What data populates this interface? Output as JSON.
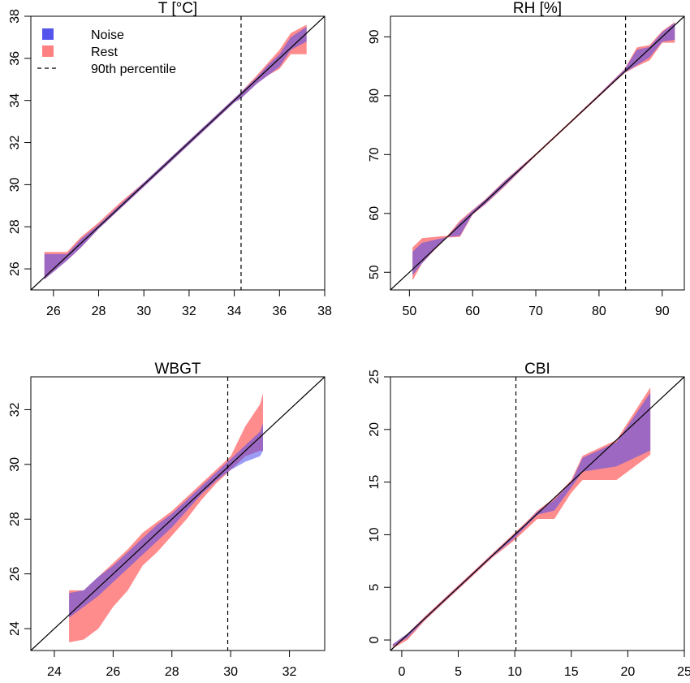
{
  "legend": {
    "items": [
      {
        "label": "Noise",
        "kind": "fill",
        "color": "#5555ee"
      },
      {
        "label": "Rest",
        "kind": "fill",
        "color": "#ff8080"
      },
      {
        "label": "90th percentile",
        "kind": "dash",
        "color": "#000000"
      }
    ],
    "position": "top-left of first panel"
  },
  "colors": {
    "noise": "#4b4bec",
    "rest": "#ff7f7f",
    "overlap": "#8a1e75",
    "identity_line": "#000000"
  },
  "chart_data": [
    {
      "type": "area",
      "title": "T [°C]",
      "xlim": [
        25,
        38
      ],
      "ylim": [
        25,
        38
      ],
      "xticks": [
        26,
        28,
        30,
        32,
        34,
        36,
        38
      ],
      "yticks": [
        26,
        28,
        30,
        32,
        34,
        36,
        38
      ],
      "percentile90": 34.3,
      "identity_line": true,
      "series": [
        {
          "name": "Rest",
          "x": [
            25.6,
            26.6,
            27.2,
            28.0,
            29.0,
            30.0,
            31.0,
            32.0,
            33.0,
            34.0,
            34.3,
            35.0,
            35.5,
            36.0,
            36.5,
            37.2
          ],
          "lower": [
            25.5,
            26.4,
            27.0,
            27.9,
            28.9,
            29.9,
            30.9,
            31.9,
            32.9,
            33.9,
            34.1,
            34.8,
            35.2,
            35.5,
            36.2,
            36.2
          ],
          "upper": [
            26.8,
            26.8,
            27.5,
            28.2,
            29.2,
            30.1,
            31.1,
            32.1,
            33.1,
            34.1,
            34.4,
            35.2,
            35.8,
            36.4,
            37.2,
            37.6
          ]
        },
        {
          "name": "Noise",
          "x": [
            25.6,
            26.6,
            27.2,
            28.0,
            29.0,
            30.0,
            31.0,
            32.0,
            33.0,
            34.0,
            34.3,
            35.0,
            35.5,
            36.0,
            36.5,
            37.2
          ],
          "lower": [
            25.5,
            26.4,
            27.0,
            27.9,
            28.9,
            29.9,
            30.9,
            31.9,
            32.9,
            33.9,
            34.1,
            34.8,
            35.2,
            35.6,
            36.4,
            36.8
          ],
          "upper": [
            26.7,
            26.7,
            27.4,
            28.1,
            29.1,
            30.1,
            31.1,
            32.1,
            33.1,
            34.1,
            34.4,
            35.1,
            35.7,
            36.2,
            37.0,
            37.5
          ]
        }
      ]
    },
    {
      "type": "area",
      "title": "RH [%]",
      "xlim": [
        47,
        93.5
      ],
      "ylim": [
        47,
        93.5
      ],
      "xticks": [
        50,
        60,
        70,
        80,
        90
      ],
      "yticks": [
        50,
        60,
        70,
        80,
        90
      ],
      "percentile90": 84.2,
      "identity_line": true,
      "series": [
        {
          "name": "Rest",
          "x": [
            50.5,
            52.0,
            54.0,
            56.0,
            58.0,
            60.0,
            62.0,
            65.0,
            70.0,
            75.0,
            80.0,
            84.0,
            86.0,
            88.0,
            90.0,
            92.0
          ],
          "lower": [
            48.6,
            51.5,
            53.8,
            55.9,
            56.0,
            59.8,
            61.5,
            64.5,
            69.8,
            74.8,
            79.8,
            83.8,
            85.0,
            86.0,
            89.0,
            89.0
          ],
          "upper": [
            54.2,
            55.8,
            56.0,
            56.2,
            58.8,
            60.6,
            62.4,
            65.5,
            70.2,
            75.2,
            80.3,
            84.5,
            88.2,
            88.6,
            91.0,
            92.5
          ]
        },
        {
          "name": "Noise",
          "x": [
            50.5,
            52.0,
            54.0,
            56.0,
            58.0,
            60.0,
            62.0,
            65.0,
            70.0,
            75.0,
            80.0,
            84.0,
            86.0,
            88.0,
            90.0,
            92.0
          ],
          "lower": [
            49.5,
            51.5,
            53.9,
            56.0,
            56.2,
            59.9,
            61.6,
            64.6,
            69.9,
            74.9,
            79.9,
            83.9,
            85.2,
            86.5,
            89.2,
            89.5
          ],
          "upper": [
            53.5,
            55.0,
            55.5,
            56.0,
            58.5,
            60.5,
            62.3,
            65.4,
            70.1,
            75.1,
            80.2,
            84.4,
            87.8,
            88.3,
            90.8,
            92.4
          ]
        }
      ]
    },
    {
      "type": "area",
      "title": "WBGT",
      "xlim": [
        23.2,
        33.2
      ],
      "ylim": [
        23.2,
        33.2
      ],
      "xticks": [
        24,
        26,
        28,
        30,
        32
      ],
      "yticks": [
        24,
        26,
        28,
        30,
        32
      ],
      "percentile90": 29.9,
      "identity_line": true,
      "series": [
        {
          "name": "Rest",
          "x": [
            24.5,
            25.0,
            25.5,
            26.0,
            26.5,
            27.0,
            27.5,
            28.0,
            28.5,
            29.0,
            29.5,
            30.0,
            30.5,
            31.0,
            31.1
          ],
          "lower": [
            23.5,
            23.6,
            24.0,
            24.8,
            25.4,
            26.3,
            26.8,
            27.4,
            28.0,
            28.7,
            29.3,
            29.8,
            30.3,
            30.5,
            30.5
          ],
          "upper": [
            25.4,
            25.4,
            25.9,
            26.4,
            26.9,
            27.5,
            27.9,
            28.3,
            28.8,
            29.3,
            29.8,
            30.3,
            31.4,
            32.2,
            32.6
          ]
        },
        {
          "name": "Noise",
          "x": [
            24.5,
            25.0,
            25.5,
            26.0,
            26.5,
            27.0,
            27.5,
            28.0,
            28.5,
            29.0,
            29.5,
            30.0,
            30.5,
            31.0,
            31.1
          ],
          "lower": [
            24.4,
            24.8,
            25.2,
            25.7,
            26.2,
            26.7,
            27.2,
            27.7,
            28.3,
            28.9,
            29.4,
            29.8,
            30.1,
            30.3,
            30.5
          ],
          "upper": [
            25.3,
            25.4,
            25.9,
            26.3,
            26.8,
            27.3,
            27.8,
            28.2,
            28.7,
            29.2,
            29.7,
            30.2,
            30.7,
            31.2,
            31.5
          ]
        }
      ]
    },
    {
      "type": "area",
      "title": "CBI",
      "xlim": [
        -1,
        25
      ],
      "ylim": [
        -1,
        25
      ],
      "xticks": [
        0,
        5,
        10,
        15,
        20,
        25
      ],
      "yticks": [
        0,
        5,
        10,
        15,
        20,
        25
      ],
      "percentile90": 10.1,
      "identity_line": true,
      "series": [
        {
          "name": "Rest",
          "x": [
            -0.8,
            0.5,
            2.0,
            4.0,
            6.0,
            8.0,
            10.0,
            11.0,
            12.0,
            13.5,
            15.0,
            16.0,
            19.0,
            22.0
          ],
          "lower": [
            -0.8,
            0.0,
            1.8,
            3.8,
            5.8,
            7.8,
            9.5,
            10.5,
            11.5,
            11.5,
            14.0,
            15.2,
            15.2,
            17.6
          ],
          "upper": [
            -0.4,
            0.6,
            2.2,
            4.2,
            6.2,
            8.2,
            10.2,
            11.2,
            12.3,
            13.5,
            15.2,
            17.5,
            19.0,
            24.0
          ]
        },
        {
          "name": "Noise",
          "x": [
            -0.8,
            0.5,
            2.0,
            4.0,
            6.0,
            8.0,
            10.0,
            11.0,
            12.0,
            13.5,
            15.0,
            16.0,
            19.0,
            22.0
          ],
          "lower": [
            -0.6,
            0.2,
            1.9,
            3.9,
            5.9,
            7.9,
            9.7,
            10.8,
            11.9,
            12.3,
            14.5,
            16.0,
            16.5,
            18.0
          ],
          "upper": [
            -0.4,
            0.6,
            2.1,
            4.1,
            6.1,
            8.1,
            10.1,
            11.1,
            12.2,
            13.3,
            15.0,
            17.3,
            18.8,
            23.5
          ]
        }
      ]
    }
  ]
}
